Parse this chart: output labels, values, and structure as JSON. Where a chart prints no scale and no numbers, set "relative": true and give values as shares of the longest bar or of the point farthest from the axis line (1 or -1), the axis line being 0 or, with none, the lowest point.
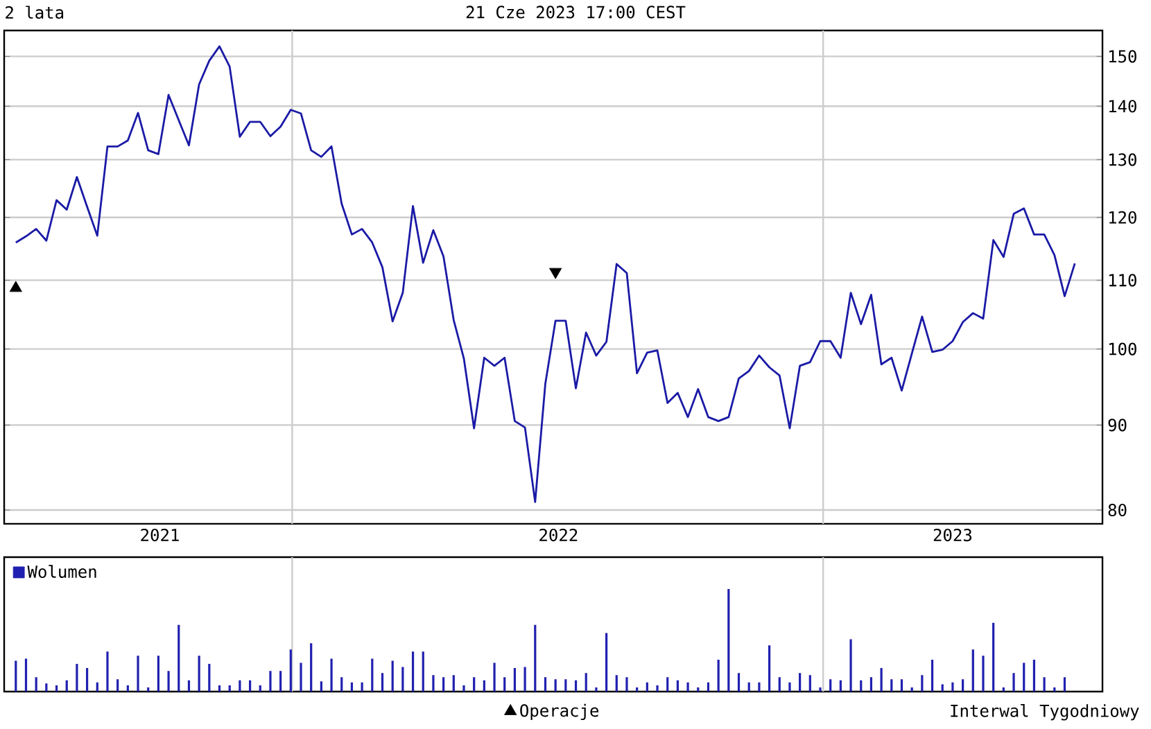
{
  "chart_data": [
    {
      "type": "line",
      "title": "2 lata",
      "subtitle": "21 Cze 2023 17:00 CEST",
      "annotations": [
        "Interwal Tygodniowy"
      ],
      "x": [
        "2021-06-25",
        "2021-07-02",
        "2021-07-09",
        "2021-07-16",
        "2021-07-23",
        "2021-07-30",
        "2021-08-06",
        "2021-08-13",
        "2021-08-20",
        "2021-08-27",
        "2021-09-03",
        "2021-09-10",
        "2021-09-17",
        "2021-09-24",
        "2021-10-01",
        "2021-10-08",
        "2021-10-15",
        "2021-10-22",
        "2021-10-29",
        "2021-11-05",
        "2021-11-12",
        "2021-11-19",
        "2021-11-26",
        "2021-12-03",
        "2021-12-10",
        "2021-12-17",
        "2021-12-24",
        "2021-12-31",
        "2022-01-07",
        "2022-01-14",
        "2022-01-21",
        "2022-01-28",
        "2022-02-04",
        "2022-02-11",
        "2022-02-18",
        "2022-02-25",
        "2022-03-04",
        "2022-03-11",
        "2022-03-18",
        "2022-03-25",
        "2022-04-01",
        "2022-04-08",
        "2022-04-15",
        "2022-04-22",
        "2022-04-29",
        "2022-05-06",
        "2022-05-13",
        "2022-05-20",
        "2022-05-27",
        "2022-06-03",
        "2022-06-10",
        "2022-06-17",
        "2022-06-24",
        "2022-07-01",
        "2022-07-08",
        "2022-07-15",
        "2022-07-22",
        "2022-07-29",
        "2022-08-05",
        "2022-08-12",
        "2022-08-19",
        "2022-08-26",
        "2022-09-02",
        "2022-09-09",
        "2022-09-16",
        "2022-09-23",
        "2022-09-30",
        "2022-10-07",
        "2022-10-14",
        "2022-10-21",
        "2022-10-28",
        "2022-11-04",
        "2022-11-11",
        "2022-11-18",
        "2022-11-25",
        "2022-12-02",
        "2022-12-09",
        "2022-12-16",
        "2022-12-23",
        "2022-12-30",
        "2023-01-06",
        "2023-01-13",
        "2023-01-20",
        "2023-01-27",
        "2023-02-03",
        "2023-02-10",
        "2023-02-17",
        "2023-02-24",
        "2023-03-03",
        "2023-03-10",
        "2023-03-17",
        "2023-03-24",
        "2023-03-31",
        "2023-04-07",
        "2023-04-14",
        "2023-04-21",
        "2023-04-28",
        "2023-05-05",
        "2023-05-12",
        "2023-05-19",
        "2023-05-26",
        "2023-06-02",
        "2023-06-09",
        "2023-06-16",
        "2023-06-23"
      ],
      "series": [
        {
          "type": "line",
          "color": "#1a1aa6",
          "values": [
            115.9,
            116.9,
            118.1,
            116.2,
            122.9,
            121.3,
            126.9,
            121.8,
            117.0,
            132.4,
            132.4,
            133.5,
            138.7,
            131.7,
            131.0,
            142.2,
            137.3,
            132.6,
            144.3,
            149.1,
            152.1,
            147.9,
            134.2,
            137.0,
            137.0,
            134.3,
            136.1,
            139.3,
            138.6,
            131.7,
            130.5,
            132.4,
            122.3,
            117.2,
            118.1,
            115.9,
            112.0,
            103.9,
            108.1,
            121.9,
            112.7,
            117.9,
            113.7,
            104.1,
            98.7,
            89.6,
            98.8,
            97.7,
            98.8,
            90.5,
            89.7,
            80.9,
            95.3,
            104.0,
            104.0,
            94.7,
            102.3,
            99.1,
            101.0,
            112.5,
            111.1,
            96.7,
            99.5,
            99.8,
            92.8,
            94.1,
            91.0,
            94.6,
            91.0,
            90.5,
            91.0,
            96.0,
            97.0,
            99.1,
            97.5,
            96.4,
            89.6,
            97.7,
            98.2,
            101.1,
            101.1,
            98.8,
            108.1,
            103.5,
            107.8,
            97.9,
            98.8,
            94.4,
            99.4,
            104.6,
            99.6,
            99.9,
            101.1,
            103.8,
            105.1,
            104.3,
            116.3,
            113.6,
            120.6,
            121.5,
            117.2,
            117.2,
            113.9,
            107.6,
            112.6
          ]
        },
        {
          "type": "scatter",
          "name": "Operacje",
          "marker": "triangle",
          "color": "#000000",
          "x": [
            "2021-06-25"
          ],
          "values": [
            108.8
          ]
        },
        {
          "type": "scatter",
          "marker": "triangle_down",
          "color": "#000000",
          "x": [
            "2022-07-01"
          ],
          "values": [
            111.3
          ]
        }
      ],
      "xlim": [
        "2021-06-17",
        "2023-07-12"
      ],
      "xticks": [
        {
          "value": "2021-10-02",
          "label": "2021"
        },
        {
          "value": "2022-01-01",
          "label": null
        },
        {
          "value": "2022-07-03",
          "label": "2022"
        },
        {
          "value": "2023-01-01",
          "label": null
        },
        {
          "value": "2023-03-31",
          "label": "2023"
        }
      ],
      "ylim": [
        78.5,
        155.5
      ],
      "yticks": [
        80,
        90,
        100,
        110,
        120,
        130,
        140,
        150
      ],
      "log": "y",
      "grid": true,
      "legend": "bottom"
    },
    {
      "type": "bar",
      "relative": true,
      "tick_labels": false,
      "grid": "x",
      "legend": "top left",
      "xlim": [
        "2021-06-17",
        "2023-07-12"
      ],
      "xticks": [
        {
          "value": "2022-01-01",
          "label": null
        },
        {
          "value": "2023-01-01",
          "label": null
        }
      ],
      "x": [
        "2021-06-25",
        "2021-07-02",
        "2021-07-09",
        "2021-07-16",
        "2021-07-23",
        "2021-07-30",
        "2021-08-06",
        "2021-08-13",
        "2021-08-20",
        "2021-08-27",
        "2021-09-03",
        "2021-09-10",
        "2021-09-17",
        "2021-09-24",
        "2021-10-01",
        "2021-10-08",
        "2021-10-15",
        "2021-10-22",
        "2021-10-29",
        "2021-11-05",
        "2021-11-12",
        "2021-11-19",
        "2021-11-26",
        "2021-12-03",
        "2021-12-10",
        "2021-12-17",
        "2021-12-24",
        "2021-12-31",
        "2022-01-07",
        "2022-01-14",
        "2022-01-21",
        "2022-01-28",
        "2022-02-04",
        "2022-02-11",
        "2022-02-18",
        "2022-02-25",
        "2022-03-04",
        "2022-03-11",
        "2022-03-18",
        "2022-03-25",
        "2022-04-01",
        "2022-04-08",
        "2022-04-15",
        "2022-04-22",
        "2022-04-29",
        "2022-05-06",
        "2022-05-13",
        "2022-05-20",
        "2022-05-27",
        "2022-06-03",
        "2022-06-10",
        "2022-06-17",
        "2022-06-24",
        "2022-07-01",
        "2022-07-08",
        "2022-07-15",
        "2022-07-22",
        "2022-07-29",
        "2022-08-05",
        "2022-08-12",
        "2022-08-19",
        "2022-08-26",
        "2022-09-02",
        "2022-09-09",
        "2022-09-16",
        "2022-09-23",
        "2022-09-30",
        "2022-10-07",
        "2022-10-14",
        "2022-10-21",
        "2022-10-28",
        "2022-11-04",
        "2022-11-11",
        "2022-11-18",
        "2022-11-25",
        "2022-12-02",
        "2022-12-09",
        "2022-12-16",
        "2022-12-23",
        "2022-12-30",
        "2023-01-06",
        "2023-01-13",
        "2023-01-20",
        "2023-01-27",
        "2023-02-03",
        "2023-02-10",
        "2023-02-17",
        "2023-02-24",
        "2023-03-03",
        "2023-03-10",
        "2023-03-17",
        "2023-03-24",
        "2023-03-31",
        "2023-04-07",
        "2023-04-14",
        "2023-04-21",
        "2023-04-28",
        "2023-05-05",
        "2023-05-12",
        "2023-05-19",
        "2023-05-26",
        "2023-06-02",
        "2023-06-09",
        "2023-06-16"
      ],
      "series": [
        {
          "name": "Wolumen",
          "color": "#2020b0",
          "values": [
            0.3,
            0.32,
            0.14,
            0.08,
            0.06,
            0.11,
            0.27,
            0.23,
            0.09,
            0.39,
            0.12,
            0.06,
            0.35,
            0.04,
            0.35,
            0.2,
            0.65,
            0.11,
            0.35,
            0.27,
            0.06,
            0.06,
            0.11,
            0.11,
            0.06,
            0.2,
            0.2,
            0.41,
            0.28,
            0.47,
            0.1,
            0.32,
            0.14,
            0.09,
            0.09,
            0.32,
            0.18,
            0.3,
            0.24,
            0.39,
            0.39,
            0.16,
            0.14,
            0.16,
            0.06,
            0.14,
            0.11,
            0.28,
            0.14,
            0.23,
            0.24,
            0.65,
            0.14,
            0.12,
            0.12,
            0.11,
            0.18,
            0.04,
            0.57,
            0.16,
            0.14,
            0.04,
            0.09,
            0.06,
            0.14,
            0.11,
            0.09,
            0.04,
            0.09,
            0.31,
            1,
            0.18,
            0.09,
            0.09,
            0.45,
            0.14,
            0.09,
            0.18,
            0.16,
            0.04,
            0.12,
            0.11,
            0.51,
            0.11,
            0.14,
            0.23,
            0.12,
            0.12,
            0.04,
            0.16,
            0.31,
            0.07,
            0.09,
            0.12,
            0.41,
            0.35,
            0.67,
            0.04,
            0.18,
            0.28,
            0.31,
            0.14,
            0.04,
            0.14
          ]
        }
      ]
    }
  ]
}
